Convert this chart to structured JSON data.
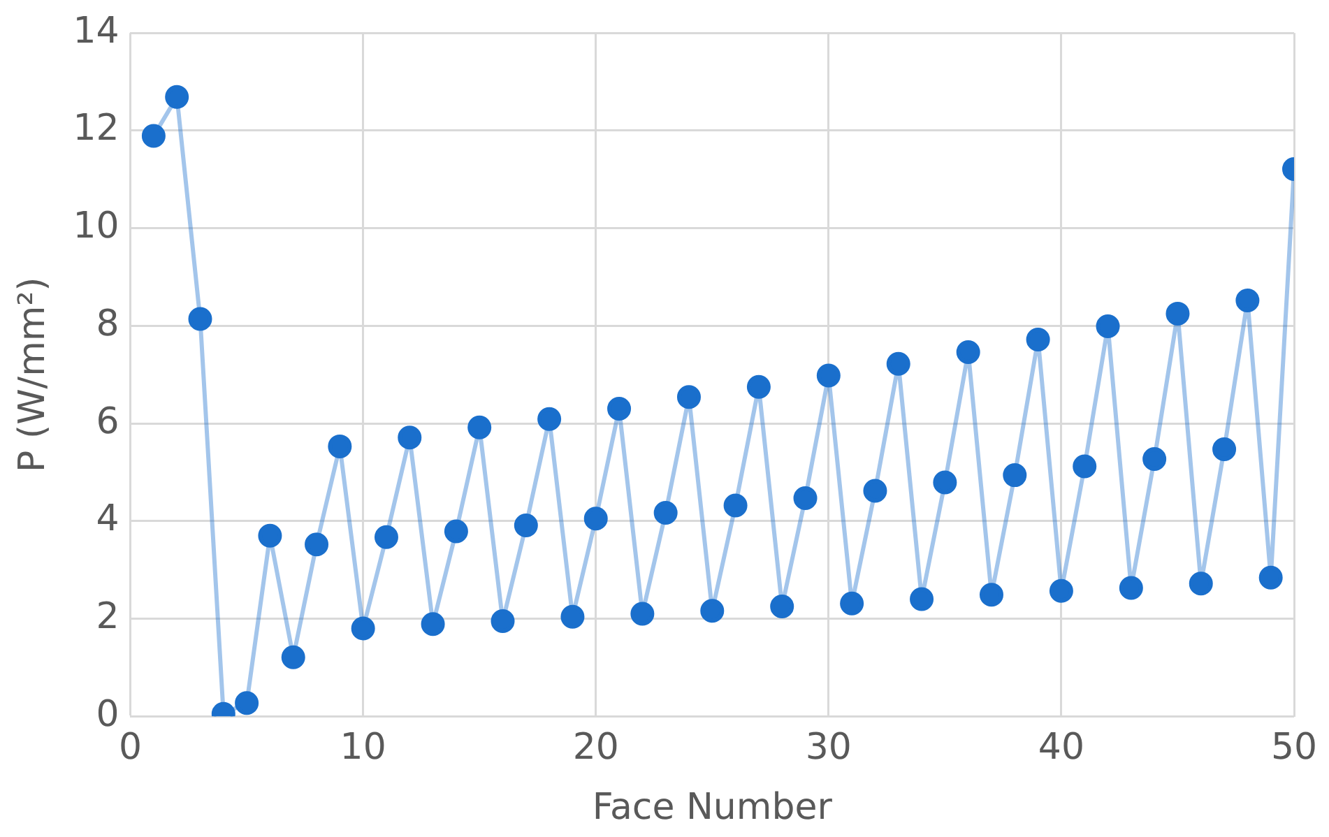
{
  "chart_data": {
    "type": "line",
    "xlabel": "Face Number",
    "ylabel": "P (W/mm²)",
    "x": [
      1,
      2,
      3,
      4,
      5,
      6,
      7,
      8,
      9,
      10,
      11,
      12,
      13,
      14,
      15,
      16,
      17,
      18,
      19,
      20,
      21,
      22,
      23,
      24,
      25,
      26,
      27,
      28,
      29,
      30,
      31,
      32,
      33,
      34,
      35,
      36,
      37,
      38,
      39,
      40,
      41,
      42,
      43,
      44,
      45,
      46,
      47,
      48,
      49,
      50
    ],
    "series": [
      {
        "color": "#1a6fcc",
        "values": [
          11.89,
          12.69,
          8.14,
          0.05,
          0.27,
          3.7,
          1.21,
          3.52,
          5.53,
          1.8,
          3.67,
          5.71,
          1.89,
          3.79,
          5.92,
          1.95,
          3.91,
          6.09,
          2.04,
          4.05,
          6.3,
          2.1,
          4.17,
          6.54,
          2.16,
          4.32,
          6.75,
          2.25,
          4.47,
          6.98,
          2.31,
          4.62,
          7.22,
          2.4,
          4.79,
          7.46,
          2.49,
          4.94,
          7.72,
          2.57,
          5.12,
          7.99,
          2.63,
          5.27,
          8.25,
          2.72,
          5.47,
          8.52,
          2.84,
          11.21
        ]
      }
    ],
    "xlim": [
      0,
      50
    ],
    "xticks": [
      0,
      10,
      20,
      30,
      40,
      50
    ],
    "ylim": [
      0,
      14
    ],
    "yticks": [
      0,
      2,
      4,
      6,
      8,
      10,
      12,
      14
    ],
    "grid": true,
    "legend": false,
    "marker": "circle",
    "line_style": "solid"
  }
}
